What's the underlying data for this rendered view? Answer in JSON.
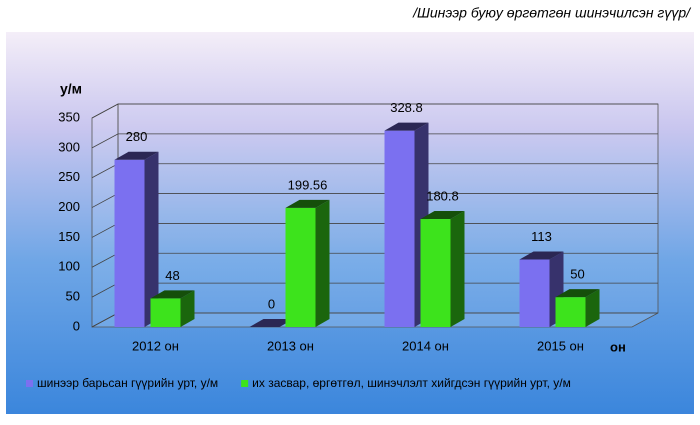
{
  "chart_data": {
    "type": "bar3d",
    "title": "/Шинээр буюу өргөтгөн шинэчилсэн гүүр/",
    "y_axis_label": "у/м",
    "x_axis_label": "он",
    "categories": [
      "2012 он",
      "2013 он",
      "2014 он",
      "2015 он"
    ],
    "series": [
      {
        "name": "шинээр барьсан гүүрийн урт, у/м",
        "color": "#7b70f0",
        "values": [
          280,
          0,
          328.8,
          113
        ]
      },
      {
        "name": "их засвар, өргөтгөл, шинэчлэлт хийгдсэн гүүрийн урт, у/м",
        "color": "#3de31c",
        "values": [
          48,
          199.56,
          180.8,
          50
        ]
      }
    ],
    "ylim": [
      0,
      350
    ],
    "yticks": [
      0,
      50,
      100,
      150,
      200,
      250,
      300,
      350
    ],
    "grid": true
  }
}
